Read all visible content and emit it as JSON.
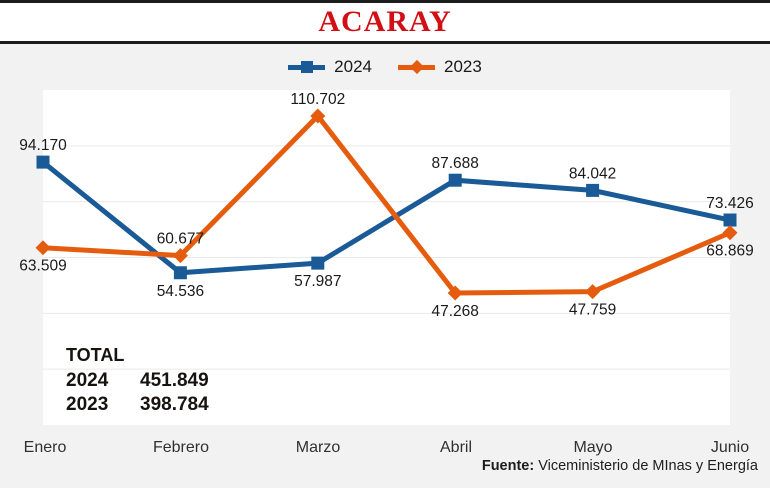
{
  "header": {
    "title": "ACARAY",
    "title_color": "#d10f15"
  },
  "legend": {
    "items": [
      {
        "label": "2024",
        "color": "#1a5a96",
        "marker": "square"
      },
      {
        "label": "2023",
        "color": "#e55c0e",
        "marker": "diamond"
      }
    ]
  },
  "chart_data": {
    "type": "line",
    "title": "ACARAY",
    "categories": [
      "Enero",
      "Febrero",
      "Marzo",
      "Abril",
      "Mayo",
      "Junio"
    ],
    "series": [
      {
        "name": "2024",
        "color": "#1a5a96",
        "marker": "square",
        "values": [
          94170,
          54536,
          57987,
          87688,
          84042,
          73426
        ],
        "point_labels": [
          "94.170",
          "54.536",
          "57.987",
          "87.688",
          "84.042",
          "73.426"
        ],
        "label_positions": [
          "above",
          "below",
          "below",
          "above",
          "above",
          "above"
        ]
      },
      {
        "name": "2023",
        "color": "#e55c0e",
        "marker": "diamond",
        "values": [
          63509,
          60677,
          110702,
          47268,
          47759,
          68869
        ],
        "point_labels": [
          "63.509",
          "60.677",
          "110.702",
          "47.268",
          "47.759",
          "68.869"
        ],
        "label_positions": [
          "below",
          "above",
          "above",
          "below",
          "below",
          "below"
        ]
      }
    ],
    "xlabel": "",
    "ylabel": "",
    "ylim": [
      0,
      120000
    ],
    "grid_step": 20000,
    "grid": true,
    "legend_position": "top"
  },
  "totals": {
    "heading": "TOTAL",
    "rows": [
      {
        "year": "2024",
        "value": "451.849"
      },
      {
        "year": "2023",
        "value": "398.784"
      }
    ]
  },
  "footer": {
    "source_label": "Fuente:",
    "source_text": "Viceministerio de MInas y Energía"
  },
  "colors": {
    "background": "#f2f2f2",
    "plot_background": "#ffffff",
    "gridline": "#eaeaea",
    "rule": "#1c1c1c",
    "label_text": "#1a1a1a"
  }
}
